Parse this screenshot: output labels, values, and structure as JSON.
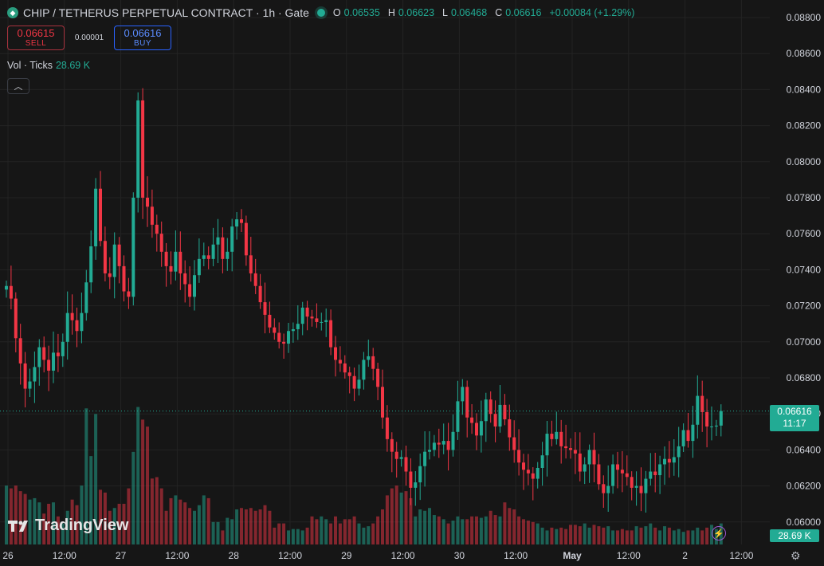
{
  "header": {
    "symbol": "CHIP / TETHERUS PERPETUAL CONTRACT · 1h · Gate",
    "ohlc": [
      {
        "key": "O",
        "value": "0.06535"
      },
      {
        "key": "H",
        "value": "0.06623"
      },
      {
        "key": "L",
        "value": "0.06468"
      },
      {
        "key": "C",
        "value": "0.06616"
      }
    ],
    "change": "+0.00084 (+1.29%)",
    "logo_icon": "diamond-icon"
  },
  "trade": {
    "sell_price": "0.06615",
    "sell_label": "SELL",
    "spread": "0.00001",
    "buy_price": "0.06616",
    "buy_label": "BUY"
  },
  "volume_indicator": {
    "label": "Vol · Ticks",
    "value": "28.69 K"
  },
  "branding": "TradingView",
  "last_price_tag": {
    "price": "0.06616",
    "countdown": "11:17"
  },
  "last_volume_tag": "28.69 K",
  "colors": {
    "up": "#22ab94",
    "down": "#f23645",
    "background": "#161616",
    "grid": "#232323"
  },
  "chart_data": {
    "type": "candlestick",
    "interval": "1h",
    "y_axis_ticks": [
      "0.06000",
      "0.06200",
      "0.06400",
      "0.06600",
      "0.06800",
      "0.07000",
      "0.07200",
      "0.07400",
      "0.07600",
      "0.07800",
      "0.08000",
      "0.08200",
      "0.08400",
      "0.08600",
      "0.08800"
    ],
    "ylim": [
      0.0596,
      0.0888
    ],
    "x_axis_ticks": [
      {
        "label": "26",
        "index": 0
      },
      {
        "label": "12:00",
        "index": 12
      },
      {
        "label": "27",
        "index": 24
      },
      {
        "label": "12:00",
        "index": 36
      },
      {
        "label": "28",
        "index": 48
      },
      {
        "label": "12:00",
        "index": 60
      },
      {
        "label": "29",
        "index": 72
      },
      {
        "label": "12:00",
        "index": 84
      },
      {
        "label": "30",
        "index": 96
      },
      {
        "label": "12:00",
        "index": 108
      },
      {
        "label": "May",
        "index": 120
      },
      {
        "label": "12:00",
        "index": 132
      },
      {
        "label": "2",
        "index": 144
      },
      {
        "label": "12:00",
        "index": 156
      }
    ],
    "closes": [
      0.0731,
      0.0724,
      0.0702,
      0.0688,
      0.0674,
      0.0678,
      0.0686,
      0.0697,
      0.069,
      0.0684,
      0.0694,
      0.0692,
      0.07,
      0.0716,
      0.0712,
      0.0706,
      0.0716,
      0.0733,
      0.0753,
      0.0785,
      0.0756,
      0.0738,
      0.0736,
      0.0754,
      0.0742,
      0.0728,
      0.0725,
      0.078,
      0.0834,
      0.078,
      0.0775,
      0.0765,
      0.076,
      0.075,
      0.0742,
      0.0739,
      0.075,
      0.0738,
      0.0732,
      0.0725,
      0.0737,
      0.0746,
      0.0748,
      0.0746,
      0.0754,
      0.0758,
      0.0746,
      0.075,
      0.0764,
      0.0768,
      0.0766,
      0.0748,
      0.0738,
      0.0731,
      0.0722,
      0.0715,
      0.0708,
      0.0705,
      0.07,
      0.0699,
      0.0706,
      0.0707,
      0.071,
      0.0719,
      0.0714,
      0.0713,
      0.0711,
      0.0711,
      0.0712,
      0.0697,
      0.069,
      0.0688,
      0.0683,
      0.0681,
      0.0674,
      0.0679,
      0.069,
      0.0692,
      0.0685,
      0.0675,
      0.0658,
      0.0646,
      0.0639,
      0.0635,
      0.0636,
      0.0628,
      0.0619,
      0.0622,
      0.0631,
      0.0639,
      0.064,
      0.0644,
      0.0643,
      0.0645,
      0.064,
      0.065,
      0.0667,
      0.0675,
      0.0658,
      0.0655,
      0.0648,
      0.0656,
      0.0668,
      0.066,
      0.0653,
      0.0665,
      0.0657,
      0.0647,
      0.064,
      0.0633,
      0.0629,
      0.0627,
      0.0624,
      0.063,
      0.0637,
      0.0649,
      0.0646,
      0.065,
      0.0642,
      0.0641,
      0.064,
      0.0638,
      0.0628,
      0.0632,
      0.064,
      0.0632,
      0.0621,
      0.0616,
      0.062,
      0.0632,
      0.0629,
      0.0627,
      0.0625,
      0.0619,
      0.062,
      0.0616,
      0.0624,
      0.0628,
      0.0626,
      0.0632,
      0.0635,
      0.0633,
      0.0636,
      0.0642,
      0.0651,
      0.0645,
      0.0654,
      0.067,
      0.0661,
      0.0653,
      0.0653,
      0.06535,
      0.06616
    ],
    "volumes_k": [
      84,
      80,
      84,
      76,
      72,
      64,
      66,
      60,
      44,
      58,
      60,
      40,
      30,
      48,
      64,
      56,
      84,
      194,
      126,
      186,
      78,
      74,
      48,
      52,
      58,
      58,
      80,
      132,
      196,
      178,
      168,
      94,
      96,
      80,
      48,
      66,
      70,
      64,
      60,
      52,
      48,
      56,
      70,
      66,
      32,
      32,
      20,
      38,
      36,
      50,
      52,
      50,
      52,
      48,
      50,
      56,
      48,
      24,
      30,
      30,
      20,
      22,
      22,
      20,
      24,
      40,
      36,
      40,
      36,
      30,
      40,
      30,
      36,
      36,
      40,
      30,
      24,
      26,
      30,
      40,
      50,
      70,
      80,
      84,
      74,
      76,
      66,
      40,
      50,
      48,
      52,
      42,
      40,
      36,
      30,
      34,
      40,
      36,
      36,
      40,
      40,
      38,
      40,
      48,
      42,
      40,
      60,
      52,
      50,
      40,
      36,
      34,
      32,
      30,
      24,
      20,
      24,
      22,
      24,
      22,
      28,
      28,
      26,
      30,
      24,
      28,
      26,
      24,
      26,
      20,
      20,
      22,
      20,
      20,
      26,
      24,
      26,
      30,
      24,
      20,
      26,
      24,
      20,
      22,
      18,
      20,
      20,
      24,
      20,
      24,
      28,
      22,
      30
    ],
    "volume_axis_label": "28.69 K"
  }
}
